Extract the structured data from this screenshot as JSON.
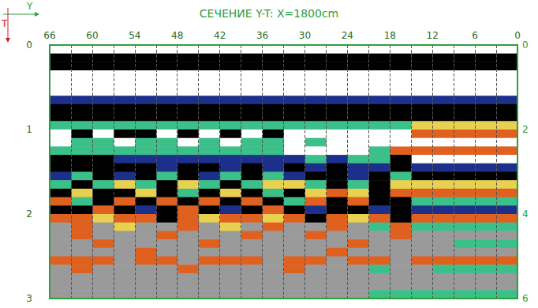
{
  "chart_data": {
    "type": "heatmap",
    "title": "СЕЧЕНИЕ Y-T: X=1800cm",
    "xlabel": "Y",
    "ylabel": "T",
    "x": [
      1.5,
      4.5,
      7.5,
      10.5,
      13.5,
      16.5,
      19.5,
      22.5,
      25.5,
      28.5,
      31.5,
      34.5,
      37.5,
      40.5,
      43.5,
      46.5,
      49.5,
      52.5,
      55.5,
      58.5,
      61.5,
      64.5
    ],
    "y": [
      0.05,
      0.15,
      0.25,
      0.35,
      0.45,
      0.55,
      0.65,
      0.75,
      0.85,
      0.95,
      1.05,
      1.15,
      1.25,
      1.35,
      1.45,
      1.55,
      1.65,
      1.75,
      1.85,
      1.95,
      2.05,
      2.15,
      2.25,
      2.35,
      2.45,
      2.55,
      2.65,
      2.75,
      2.85,
      2.95
    ],
    "cells": [
      [
        0,
        0,
        0,
        0,
        0,
        0,
        0,
        0,
        0,
        0,
        0,
        0,
        0,
        0,
        0,
        0,
        0,
        0,
        0,
        0,
        0,
        0
      ],
      [
        3,
        3,
        3,
        3,
        3,
        3,
        3,
        3,
        3,
        3,
        3,
        3,
        3,
        3,
        3,
        3,
        3,
        3,
        3,
        3,
        3,
        3
      ],
      [
        3,
        3,
        3,
        3,
        3,
        3,
        3,
        3,
        3,
        3,
        3,
        3,
        3,
        3,
        3,
        3,
        3,
        3,
        3,
        3,
        3,
        3
      ],
      [
        0,
        0,
        0,
        0,
        0,
        0,
        0,
        0,
        0,
        0,
        0,
        0,
        0,
        0,
        0,
        0,
        0,
        0,
        0,
        0,
        0,
        0
      ],
      [
        0,
        0,
        0,
        0,
        0,
        0,
        0,
        0,
        0,
        0,
        0,
        0,
        0,
        0,
        0,
        0,
        0,
        0,
        0,
        0,
        0,
        0
      ],
      [
        0,
        0,
        0,
        0,
        0,
        0,
        0,
        0,
        0,
        0,
        0,
        0,
        0,
        0,
        0,
        0,
        0,
        0,
        0,
        0,
        0,
        0
      ],
      [
        2,
        2,
        2,
        2,
        2,
        2,
        2,
        2,
        2,
        2,
        2,
        2,
        2,
        2,
        2,
        2,
        2,
        2,
        2,
        2,
        2,
        2
      ],
      [
        3,
        3,
        3,
        3,
        3,
        3,
        3,
        3,
        3,
        3,
        3,
        3,
        3,
        3,
        3,
        3,
        3,
        3,
        3,
        3,
        3,
        3
      ],
      [
        3,
        3,
        3,
        3,
        3,
        3,
        3,
        3,
        3,
        3,
        3,
        3,
        3,
        3,
        3,
        3,
        3,
        3,
        3,
        3,
        3,
        3
      ],
      [
        4,
        4,
        4,
        4,
        4,
        1,
        1,
        1,
        1,
        1,
        1,
        1,
        1,
        1,
        1,
        1,
        1,
        1,
        1,
        1,
        1,
        1
      ],
      [
        5,
        5,
        5,
        5,
        5,
        0,
        0,
        0,
        0,
        0,
        0,
        3,
        0,
        3,
        0,
        3,
        0,
        3,
        3,
        0,
        3,
        0
      ],
      [
        0,
        0,
        0,
        0,
        0,
        0,
        0,
        0,
        0,
        1,
        0,
        1,
        1,
        0,
        1,
        0,
        1,
        1,
        0,
        1,
        1,
        0
      ],
      [
        5,
        5,
        5,
        5,
        5,
        5,
        1,
        0,
        0,
        0,
        0,
        1,
        1,
        1,
        1,
        1,
        1,
        1,
        1,
        1,
        1,
        1
      ],
      [
        0,
        0,
        0,
        0,
        0,
        3,
        1,
        1,
        2,
        1,
        2,
        2,
        2,
        2,
        2,
        2,
        2,
        2,
        2,
        3,
        3,
        3
      ],
      [
        2,
        2,
        2,
        2,
        2,
        3,
        2,
        2,
        3,
        2,
        3,
        2,
        3,
        2,
        3,
        3,
        2,
        3,
        3,
        3,
        3,
        3
      ],
      [
        3,
        3,
        3,
        3,
        3,
        1,
        3,
        2,
        3,
        3,
        2,
        1,
        3,
        1,
        2,
        3,
        1,
        3,
        2,
        3,
        1,
        2
      ],
      [
        4,
        4,
        4,
        4,
        4,
        4,
        3,
        1,
        3,
        1,
        4,
        4,
        1,
        3,
        1,
        4,
        3,
        1,
        4,
        1,
        3,
        1
      ],
      [
        5,
        5,
        5,
        5,
        5,
        5,
        3,
        4,
        5,
        4,
        3,
        1,
        3,
        4,
        3,
        1,
        3,
        4,
        3,
        3,
        4,
        3
      ],
      [
        1,
        1,
        1,
        1,
        1,
        3,
        3,
        5,
        3,
        5,
        1,
        3,
        5,
        3,
        5,
        3,
        5,
        3,
        5,
        3,
        1,
        5
      ],
      [
        2,
        2,
        2,
        2,
        2,
        3,
        2,
        3,
        3,
        2,
        3,
        5,
        3,
        2,
        3,
        5,
        3,
        2,
        3,
        5,
        3,
        3
      ],
      [
        5,
        5,
        5,
        5,
        5,
        3,
        5,
        4,
        5,
        3,
        5,
        4,
        5,
        5,
        4,
        5,
        3,
        5,
        5,
        4,
        5,
        5
      ],
      [
        1,
        1,
        1,
        1,
        1,
        5,
        1,
        6,
        5,
        6,
        6,
        5,
        6,
        4,
        6,
        5,
        6,
        6,
        4,
        6,
        5,
        6
      ],
      [
        6,
        6,
        6,
        6,
        6,
        5,
        6,
        6,
        6,
        5,
        6,
        6,
        5,
        6,
        6,
        6,
        5,
        6,
        6,
        6,
        5,
        6
      ],
      [
        1,
        1,
        1,
        6,
        6,
        6,
        6,
        5,
        6,
        6,
        6,
        6,
        6,
        6,
        5,
        6,
        6,
        6,
        6,
        5,
        6,
        6
      ],
      [
        6,
        6,
        6,
        6,
        6,
        6,
        6,
        6,
        5,
        6,
        6,
        6,
        6,
        6,
        6,
        6,
        6,
        5,
        6,
        6,
        6,
        6
      ],
      [
        5,
        5,
        5,
        5,
        5,
        6,
        5,
        5,
        6,
        5,
        5,
        6,
        5,
        5,
        5,
        6,
        5,
        5,
        6,
        5,
        5,
        5
      ],
      [
        1,
        1,
        1,
        1,
        6,
        6,
        1,
        6,
        6,
        6,
        5,
        6,
        6,
        6,
        6,
        5,
        6,
        6,
        6,
        6,
        5,
        6
      ],
      [
        6,
        6,
        6,
        6,
        6,
        6,
        6,
        6,
        6,
        6,
        6,
        6,
        6,
        6,
        6,
        6,
        6,
        6,
        6,
        6,
        6,
        6
      ],
      [
        6,
        6,
        6,
        6,
        6,
        6,
        6,
        6,
        6,
        6,
        6,
        6,
        6,
        6,
        6,
        6,
        6,
        6,
        6,
        6,
        6,
        6
      ],
      [
        1,
        1,
        1,
        1,
        1,
        1,
        1,
        6,
        6,
        6,
        6,
        6,
        6,
        6,
        6,
        6,
        6,
        6,
        6,
        6,
        6,
        6
      ]
    ],
    "zlim": [
      0,
      6
    ],
    "colors": [
      "#ffffff",
      "#3cc08a",
      "#1c2f8a",
      "#000000",
      "#e8d050",
      "#e06020",
      "#9a9a9a"
    ],
    "xlim": [
      66,
      0
    ],
    "xticks": [
      66,
      60,
      54,
      48,
      42,
      36,
      30,
      24,
      18,
      12,
      6,
      0
    ],
    "ylim": [
      3,
      0
    ],
    "yticks": [
      0,
      1,
      2,
      3
    ],
    "y2lim": [
      6,
      0
    ],
    "y2ticks": [
      0,
      2,
      4,
      6
    ],
    "grid": true
  }
}
